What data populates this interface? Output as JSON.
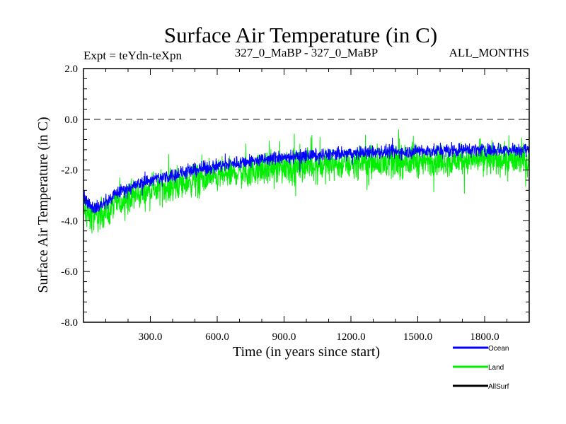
{
  "chart_data": {
    "type": "line",
    "title": "Surface Air Temperature (in C)",
    "subtitle_left": "Expt = teYdn-teXpn",
    "subtitle_center": "327_0_MaBP - 327_0_MaBP",
    "subtitle_right": "ALL_MONTHS",
    "xlabel": "Time (in years since start)",
    "ylabel": "Surface Air Temperature (in C)",
    "xlim": [
      0,
      2000
    ],
    "ylim": [
      -8.0,
      2.0
    ],
    "x_ticks": [
      300,
      600,
      900,
      1200,
      1500,
      1800
    ],
    "x_tick_labels": [
      "300.0",
      "600.0",
      "900.0",
      "1200.0",
      "1500.0",
      "1800.0"
    ],
    "y_ticks": [
      -8,
      -6,
      -4,
      -2,
      0,
      2
    ],
    "y_tick_labels": [
      "-8.0",
      "-6.0",
      "-4.0",
      "-2.0",
      "0.0",
      "2.0"
    ],
    "zero_line": 0.0,
    "series_mean_trend": {
      "x": [
        0,
        50,
        100,
        150,
        200,
        300,
        400,
        500,
        600,
        700,
        800,
        900,
        1000,
        1100,
        1200,
        1300,
        1400,
        1500,
        1600,
        1700,
        1800,
        1900,
        2000
      ],
      "ocean": [
        -3.1,
        -3.5,
        -3.3,
        -2.9,
        -2.7,
        -2.4,
        -2.2,
        -2.0,
        -1.85,
        -1.7,
        -1.6,
        -1.5,
        -1.45,
        -1.4,
        -1.35,
        -1.3,
        -1.3,
        -1.25,
        -1.25,
        -1.2,
        -1.2,
        -1.2,
        -1.2
      ],
      "land": [
        -3.6,
        -3.9,
        -3.7,
        -3.3,
        -3.1,
        -2.8,
        -2.6,
        -2.4,
        -2.25,
        -2.1,
        -2.0,
        -1.9,
        -1.85,
        -1.8,
        -1.75,
        -1.7,
        -1.7,
        -1.65,
        -1.65,
        -1.6,
        -1.6,
        -1.6,
        -1.6
      ]
    },
    "series_spread": {
      "ocean": 0.4,
      "land": 0.9
    },
    "series": [
      {
        "name": "Ocean",
        "color": "#0000ff"
      },
      {
        "name": "Land",
        "color": "#00ee00"
      },
      {
        "name": "AllSurf",
        "color": "#000000"
      }
    ],
    "legend_position": "bottom-right",
    "grid": false
  }
}
